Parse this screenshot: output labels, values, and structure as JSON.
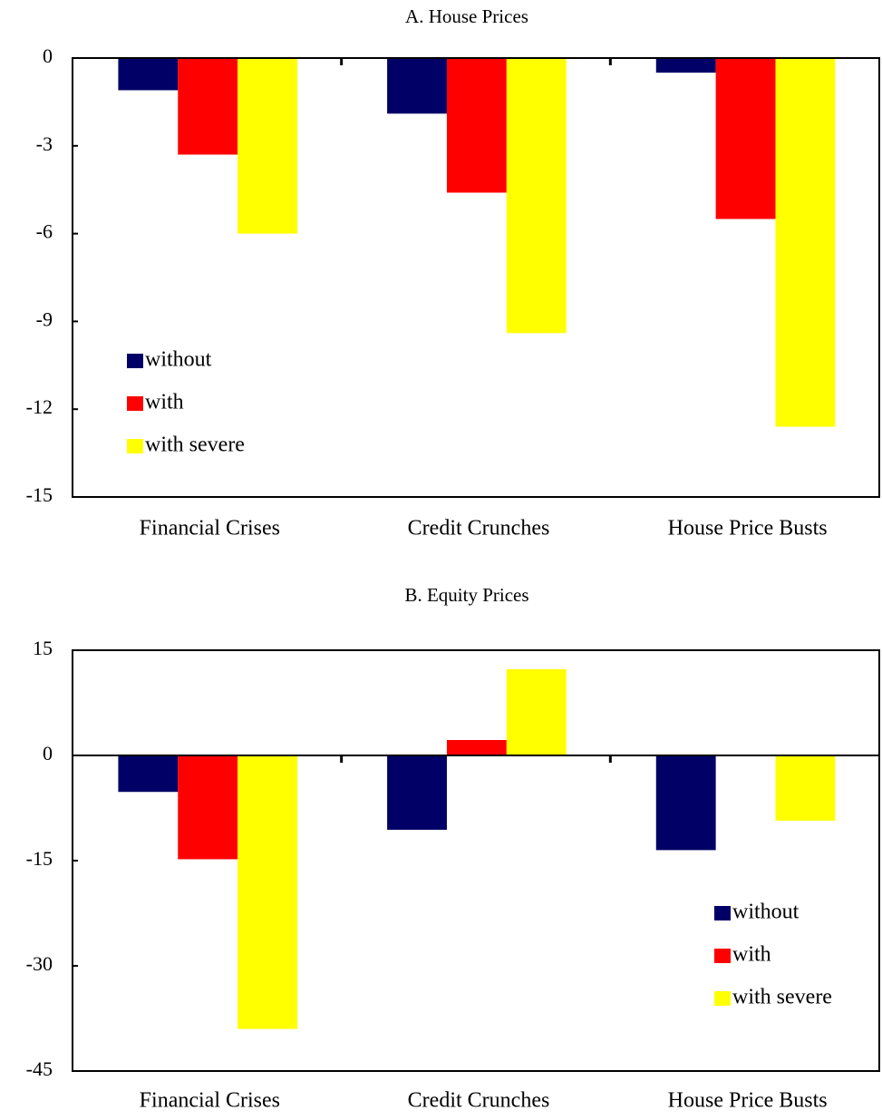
{
  "chart_data": [
    {
      "type": "bar",
      "title": "A. House Prices",
      "categories": [
        "Financial Crises",
        "Credit Crunches",
        "House Price Busts"
      ],
      "series": [
        {
          "name": "without",
          "color": "#000066",
          "values": [
            -1.1,
            -1.9,
            -0.5
          ]
        },
        {
          "name": "with",
          "color": "#ff0000",
          "values": [
            -3.3,
            -4.6,
            -5.5
          ]
        },
        {
          "name": "with severe",
          "color": "#ffff00",
          "values": [
            -6.0,
            -9.4,
            -12.6
          ]
        }
      ],
      "ylim": [
        -15,
        0
      ],
      "yticks": [
        0,
        -3,
        -6,
        -9,
        -12,
        -15
      ],
      "legend": "center-left"
    },
    {
      "type": "bar",
      "title": "B. Equity Prices",
      "categories": [
        "Financial Crises",
        "Credit Crunches",
        "House Price Busts"
      ],
      "series": [
        {
          "name": "without",
          "color": "#000066",
          "values": [
            -5.2,
            -10.6,
            -13.5
          ]
        },
        {
          "name": "with",
          "color": "#ff0000",
          "values": [
            -14.8,
            2.2,
            0
          ]
        },
        {
          "name": "with severe",
          "color": "#ffff00",
          "values": [
            -39,
            12.3,
            -9.3
          ]
        }
      ],
      "ylim": [
        -45,
        15
      ],
      "yticks": [
        15,
        0,
        -15,
        -30,
        -45
      ],
      "legend": "lower-right"
    }
  ]
}
